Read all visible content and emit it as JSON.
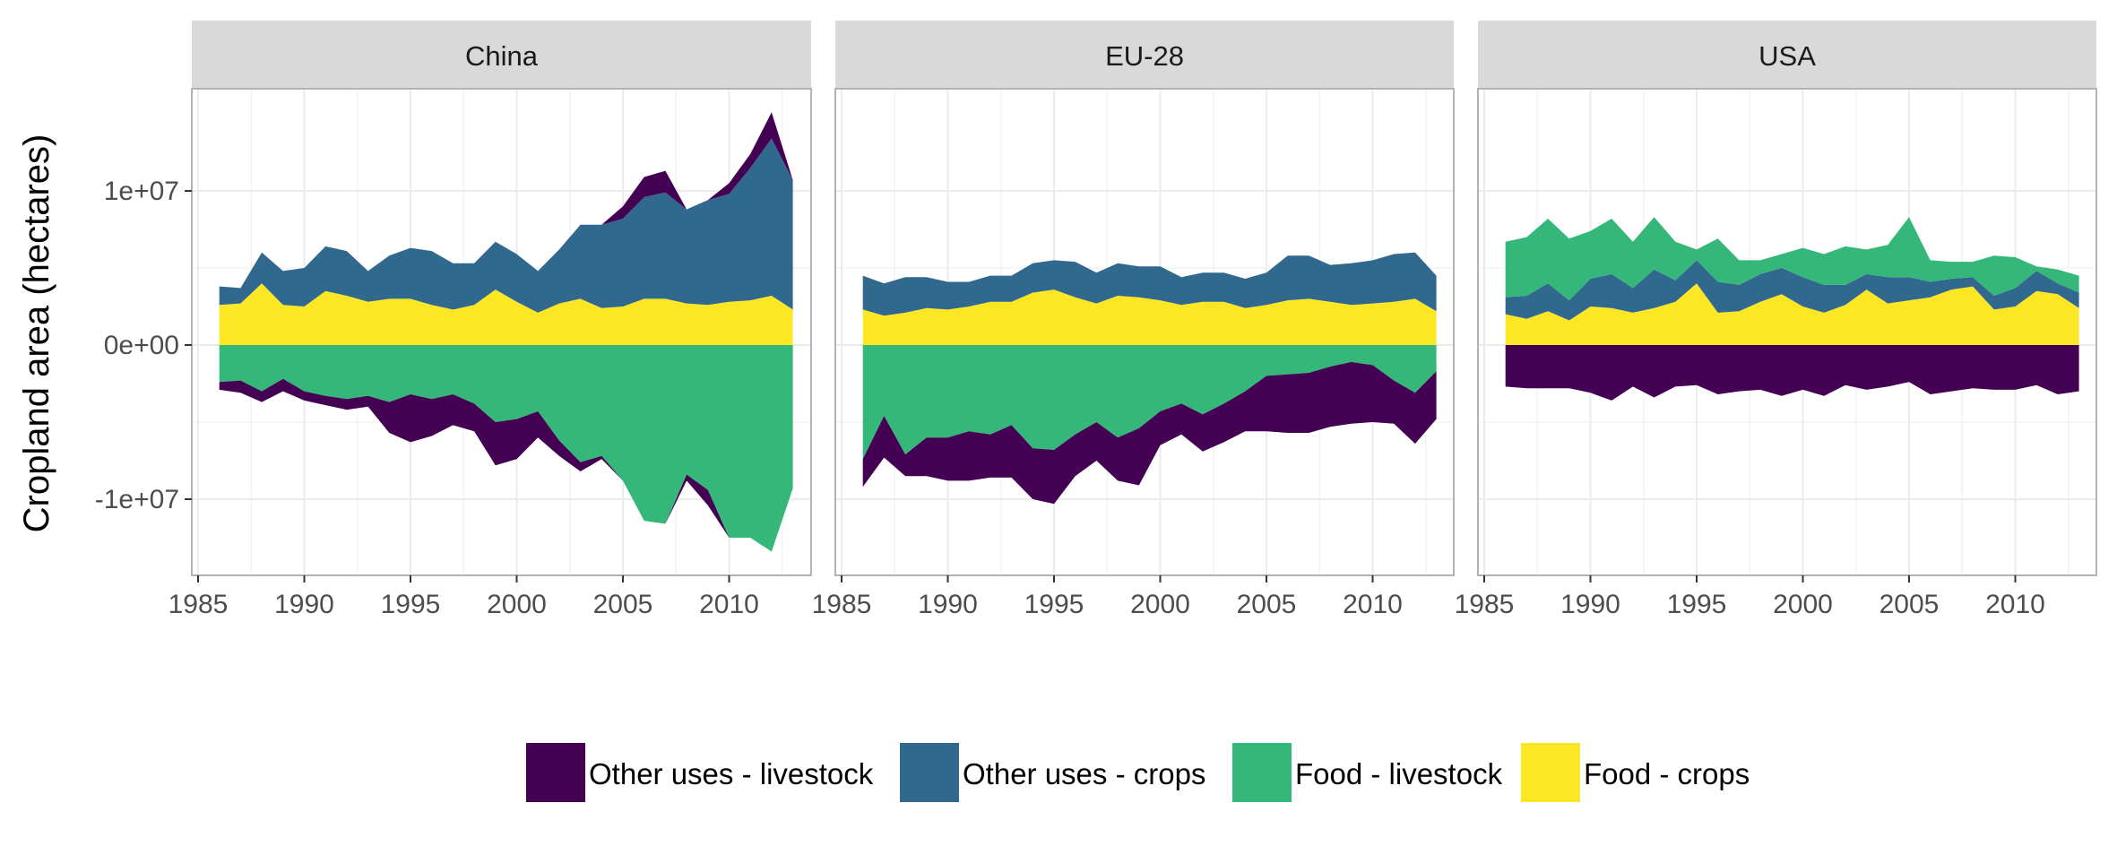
{
  "chart_data": {
    "type": "area",
    "subtype": "stacked area, faceted, diverging (crops above zero, livestock below zero)",
    "ylabel": "Cropland area (hectares)",
    "xlabel": "",
    "xlim": [
      1985,
      2014
    ],
    "ylim": [
      -15000000,
      15000000
    ],
    "x_ticks": [
      1985,
      1990,
      1995,
      2000,
      2005,
      2010
    ],
    "x_tick_labels": [
      "1985",
      "1990",
      "1995",
      "2000",
      "2005",
      "2010"
    ],
    "y_ticks": [
      -10000000,
      0,
      10000000
    ],
    "y_tick_labels": [
      "-1e+07",
      "0e+00",
      "1e+07"
    ],
    "grid": true,
    "legend_position": "bottom",
    "legend": [
      {
        "label": "Other uses - livestock",
        "color": "#440154"
      },
      {
        "label": "Other uses - crops",
        "color": "#31688e"
      },
      {
        "label": "Food - livestock",
        "color": "#35b779"
      },
      {
        "label": "Food - crops",
        "color": "#fde725"
      }
    ],
    "x": [
      1986,
      1987,
      1988,
      1989,
      1990,
      1991,
      1992,
      1993,
      1994,
      1995,
      1996,
      1997,
      1998,
      1999,
      2000,
      2001,
      2002,
      2003,
      2004,
      2005,
      2006,
      2007,
      2008,
      2009,
      2010,
      2011,
      2012,
      2013
    ],
    "facets": [
      {
        "name": "China",
        "series": [
          {
            "name": "Food - crops",
            "values": [
              2600000,
              2700000,
              4000000,
              2600000,
              2500000,
              3500000,
              3200000,
              2800000,
              3000000,
              3000000,
              2600000,
              2300000,
              2600000,
              3600000,
              2800000,
              2100000,
              2700000,
              3000000,
              2400000,
              2500000,
              3000000,
              3000000,
              2700000,
              2600000,
              2800000,
              2900000,
              3200000,
              2300000
            ]
          },
          {
            "name": "Other uses - crops",
            "values": [
              1200000,
              1000000,
              2000000,
              2200000,
              2500000,
              2900000,
              2900000,
              2000000,
              2800000,
              3300000,
              3500000,
              3000000,
              2700000,
              3100000,
              3100000,
              2700000,
              3500000,
              4800000,
              5400000,
              5700000,
              6600000,
              6900000,
              6100000,
              6800000,
              7000000,
              8600000,
              10200000,
              8400000
            ]
          },
          {
            "name": "Food - livestock",
            "values": [
              -2400000,
              -2300000,
              -3000000,
              -2200000,
              -3000000,
              -3300000,
              -3500000,
              -3300000,
              -3700000,
              -3200000,
              -3500000,
              -3200000,
              -3800000,
              -5000000,
              -4800000,
              -4300000,
              -6200000,
              -7600000,
              -7200000,
              -8800000,
              -11400000,
              -11600000,
              -8400000,
              -9400000,
              -12500000,
              -12500000,
              -13400000,
              -9300000
            ]
          },
          {
            "name": "Other uses - livestock",
            "values": [
              -500000,
              -800000,
              -700000,
              -800000,
              -600000,
              -600000,
              -700000,
              -700000,
              -2000000,
              -3100000,
              -2400000,
              -2000000,
              -1800000,
              -2800000,
              -2600000,
              -1700000,
              -1000000,
              -600000,
              -200000,
              0,
              0,
              0,
              -400000,
              -1000000,
              0,
              0,
              0,
              0
            ]
          }
        ],
        "positive_extra": [
          {
            "name": "Other uses - livestock",
            "values": [
              0,
              0,
              0,
              0,
              0,
              0,
              0,
              0,
              0,
              0,
              0,
              0,
              0,
              0,
              0,
              0,
              0,
              0,
              0,
              800000,
              1300000,
              1400000,
              0,
              0,
              700000,
              900000,
              1700000,
              0
            ]
          }
        ]
      },
      {
        "name": "EU-28",
        "series": [
          {
            "name": "Food - crops",
            "values": [
              2300000,
              1900000,
              2100000,
              2400000,
              2300000,
              2500000,
              2800000,
              2800000,
              3400000,
              3600000,
              3100000,
              2700000,
              3200000,
              3100000,
              2900000,
              2600000,
              2800000,
              2800000,
              2400000,
              2600000,
              2900000,
              3000000,
              2800000,
              2600000,
              2700000,
              2800000,
              3000000,
              2200000
            ]
          },
          {
            "name": "Other uses - crops",
            "values": [
              2200000,
              2100000,
              2300000,
              2000000,
              1800000,
              1600000,
              1700000,
              1700000,
              1900000,
              1900000,
              2300000,
              2000000,
              2100000,
              2000000,
              2200000,
              1800000,
              1900000,
              1900000,
              1900000,
              2100000,
              2900000,
              2800000,
              2400000,
              2700000,
              2800000,
              3100000,
              3000000,
              2300000
            ]
          },
          {
            "name": "Food - livestock",
            "values": [
              -7400000,
              -4600000,
              -7100000,
              -6000000,
              -6000000,
              -5600000,
              -5800000,
              -5200000,
              -6700000,
              -6800000,
              -5800000,
              -5000000,
              -6000000,
              -5400000,
              -4300000,
              -3800000,
              -4500000,
              -3800000,
              -3000000,
              -2000000,
              -1900000,
              -1800000,
              -1400000,
              -1100000,
              -1300000,
              -2300000,
              -3100000,
              -1700000
            ]
          },
          {
            "name": "Other uses - livestock",
            "values": [
              -1800000,
              -2700000,
              -1400000,
              -2500000,
              -2800000,
              -3200000,
              -2800000,
              -3400000,
              -3300000,
              -3500000,
              -2700000,
              -2500000,
              -2800000,
              -3700000,
              -2200000,
              -2000000,
              -2400000,
              -2500000,
              -2600000,
              -3600000,
              -3800000,
              -3900000,
              -3900000,
              -4000000,
              -3700000,
              -2800000,
              -3300000,
              -3100000
            ]
          }
        ]
      },
      {
        "name": "USA",
        "series": [
          {
            "name": "Food - crops",
            "values": [
              2000000,
              1700000,
              2200000,
              1600000,
              2500000,
              2400000,
              2100000,
              2400000,
              2800000,
              4000000,
              2100000,
              2200000,
              2800000,
              3300000,
              2500000,
              2100000,
              2600000,
              3600000,
              2700000,
              2900000,
              3100000,
              3600000,
              3800000,
              2300000,
              2500000,
              3500000,
              3300000,
              2400000
            ]
          },
          {
            "name": "Other uses - crops",
            "values": [
              1100000,
              1500000,
              1800000,
              1300000,
              1800000,
              2200000,
              1600000,
              2500000,
              1400000,
              1500000,
              2000000,
              1700000,
              1800000,
              1700000,
              1900000,
              1800000,
              1300000,
              1000000,
              1700000,
              1500000,
              1000000,
              700000,
              600000,
              900000,
              1200000,
              1300000,
              700000,
              1000000
            ]
          },
          {
            "name": "Food - livestock",
            "values": [
              3600000,
              3800000,
              4200000,
              4000000,
              3100000,
              3600000,
              3000000,
              3400000,
              2500000,
              700000,
              2800000,
              1600000,
              900000,
              900000,
              1900000,
              2000000,
              2500000,
              1600000,
              2100000,
              3900000,
              1400000,
              1100000,
              1000000,
              2600000,
              2000000,
              300000,
              900000,
              1100000
            ]
          },
          {
            "name": "Other uses - livestock",
            "values": [
              -2700000,
              -2800000,
              -2800000,
              -2800000,
              -3100000,
              -3600000,
              -2700000,
              -3400000,
              -2700000,
              -2600000,
              -3200000,
              -3000000,
              -2900000,
              -3300000,
              -2900000,
              -3300000,
              -2600000,
              -2900000,
              -2700000,
              -2400000,
              -3200000,
              -3000000,
              -2800000,
              -2900000,
              -2900000,
              -2600000,
              -3200000,
              -3000000
            ]
          }
        ]
      }
    ]
  }
}
